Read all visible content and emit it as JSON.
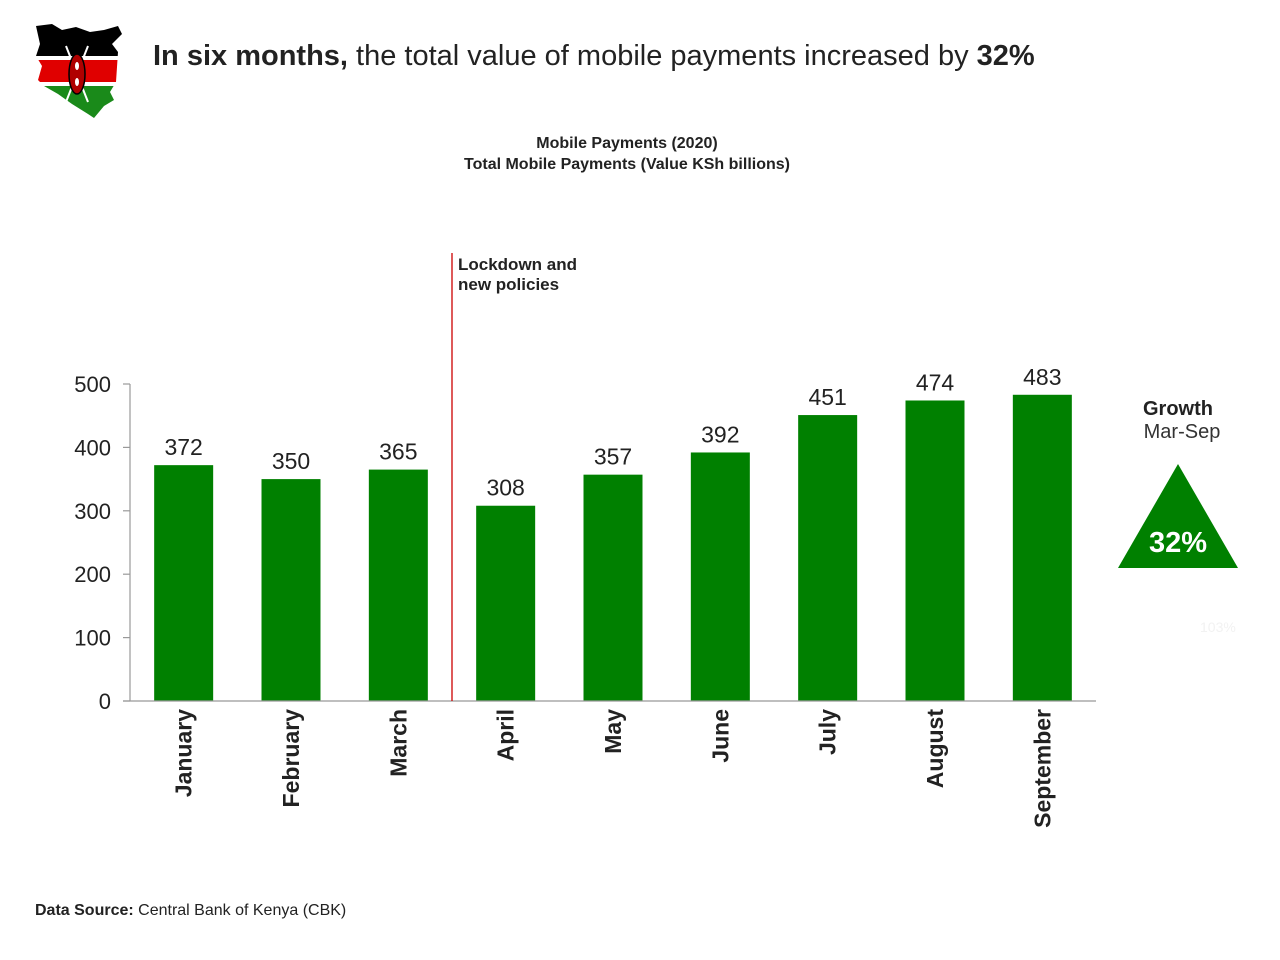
{
  "headline": {
    "bold_lead": "In six months,",
    "text": " the total value of mobile payments increased by ",
    "bold_value": "32%"
  },
  "colors": {
    "bar": "#008000",
    "annotation_line": "#cc0000",
    "axis": "#999999",
    "growth_triangle": "#008000"
  },
  "chart_data": {
    "type": "bar",
    "title": "Mobile Payments (2020)",
    "subtitle": "Total Mobile Payments (Value KSh billions)",
    "categories": [
      "January",
      "February",
      "March",
      "April",
      "May",
      "June",
      "July",
      "August",
      "September"
    ],
    "values": [
      372,
      350,
      365,
      308,
      357,
      392,
      451,
      474,
      483
    ],
    "ylim": [
      0,
      500
    ],
    "yticks": [
      0,
      100,
      200,
      300,
      400,
      500
    ],
    "xlabel": "",
    "ylabel": "",
    "grid": false,
    "data_labels": true,
    "annotation": {
      "after_category_index": 2,
      "lines": [
        "Lockdown and",
        "new policies"
      ]
    }
  },
  "growth": {
    "title": "Growth",
    "range": "Mar-Sep",
    "value": "32%",
    "faint_value": "103%"
  },
  "source": {
    "label": "Data Source:",
    "text": " Central Bank of Kenya (CBK)"
  }
}
